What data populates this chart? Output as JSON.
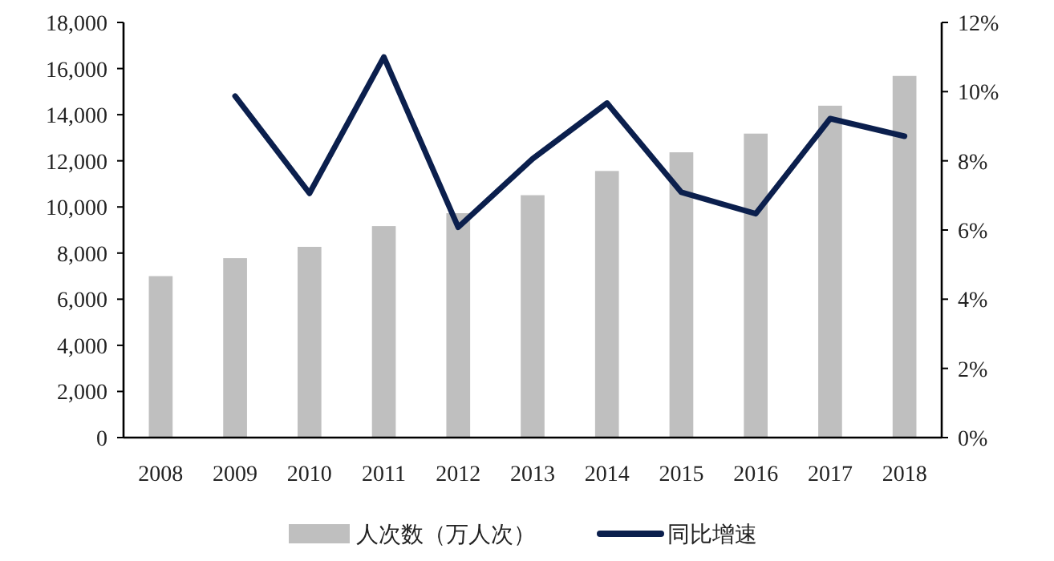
{
  "chart_data": {
    "type": "bar",
    "categories": [
      "2008",
      "2009",
      "2010",
      "2011",
      "2012",
      "2013",
      "2014",
      "2015",
      "2016",
      "2017",
      "2018"
    ],
    "series": [
      {
        "name": "人次数（万人次）",
        "color": "#bfbfbf",
        "values": [
          7000,
          7780,
          8270,
          9170,
          9730,
          10510,
          11560,
          12370,
          13180,
          14390,
          15680
        ]
      },
      {
        "name": "同比增速",
        "type": "line",
        "axis": "y2",
        "color": "#0b1f4d",
        "values": [
          null,
          9.87,
          7.06,
          11.0,
          6.08,
          8.06,
          9.67,
          7.09,
          6.47,
          9.22,
          8.71
        ]
      }
    ],
    "ylim": [
      0,
      18000
    ],
    "yticks": [
      {
        "value": 0,
        "label": "0"
      },
      {
        "value": 2000,
        "label": "2,000"
      },
      {
        "value": 4000,
        "label": "4,000"
      },
      {
        "value": 6000,
        "label": "6,000"
      },
      {
        "value": 8000,
        "label": "8,000"
      },
      {
        "value": 10000,
        "label": "10,000"
      },
      {
        "value": 12000,
        "label": "12,000"
      },
      {
        "value": 14000,
        "label": "14,000"
      },
      {
        "value": 16000,
        "label": "16,000"
      },
      {
        "value": 18000,
        "label": "18,000"
      }
    ],
    "y2lim": [
      0,
      12
    ],
    "y2ticks": [
      {
        "value": 0,
        "label": "0%"
      },
      {
        "value": 2,
        "label": "2%"
      },
      {
        "value": 4,
        "label": "4%"
      },
      {
        "value": 6,
        "label": "6%"
      },
      {
        "value": 8,
        "label": "8%"
      },
      {
        "value": 10,
        "label": "10%"
      },
      {
        "value": 12,
        "label": "12%"
      }
    ],
    "legend": "bottom"
  }
}
